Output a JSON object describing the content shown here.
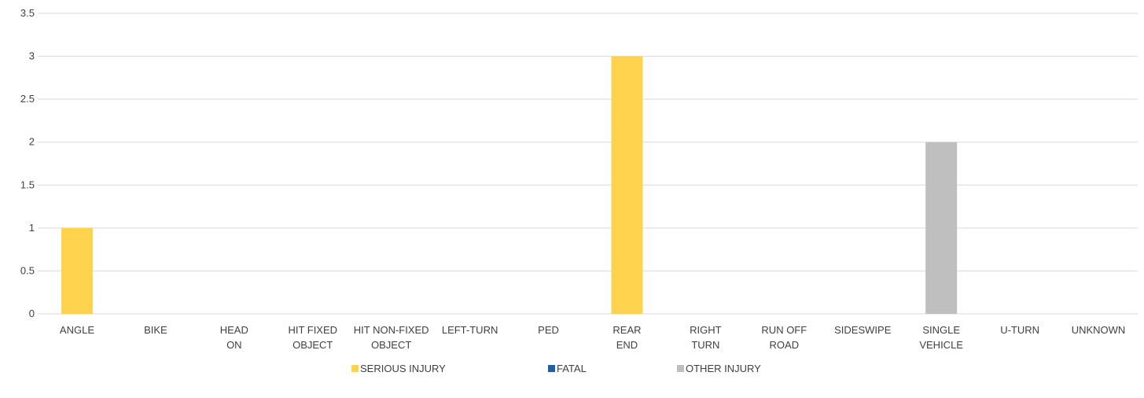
{
  "chart_data": {
    "type": "bar",
    "title": "",
    "xlabel": "",
    "ylabel": "",
    "ylim": [
      0,
      3.5
    ],
    "y_ticks": [
      "0",
      "0.5",
      "1",
      "1.5",
      "2",
      "2.5",
      "3",
      "3.5"
    ],
    "y_tick_values": [
      0,
      0.5,
      1,
      1.5,
      2,
      2.5,
      3,
      3.5
    ],
    "grid": true,
    "legend_position": "bottom",
    "categories": [
      [
        "ANGLE"
      ],
      [
        "BIKE"
      ],
      [
        "HEAD",
        "ON"
      ],
      [
        "HIT FIXED",
        "OBJECT"
      ],
      [
        "HIT NON-FIXED",
        "OBJECT"
      ],
      [
        "LEFT-TURN"
      ],
      [
        "PED"
      ],
      [
        "REAR",
        "END"
      ],
      [
        "RIGHT",
        "TURN"
      ],
      [
        "RUN OFF",
        "ROAD"
      ],
      [
        "SIDESWIPE"
      ],
      [
        "SINGLE",
        "VEHICLE"
      ],
      [
        "U-TURN"
      ],
      [
        "UNKNOWN"
      ]
    ],
    "series": [
      {
        "name": "SERIOUS INJURY",
        "color": "#ffd34e",
        "values": [
          1,
          0,
          0,
          0,
          0,
          0,
          0,
          3,
          0,
          0,
          0,
          0,
          0,
          0
        ]
      },
      {
        "name": "FATAL",
        "color": "#1f5fa6",
        "values": [
          0,
          0,
          0,
          0,
          0,
          0,
          0,
          0,
          0,
          0,
          0,
          0,
          0,
          0
        ]
      },
      {
        "name": "OTHER INJURY",
        "color": "#bfbfbf",
        "values": [
          0,
          0,
          0,
          0,
          0,
          0,
          0,
          0,
          0,
          0,
          0,
          2,
          0,
          0
        ]
      }
    ]
  }
}
